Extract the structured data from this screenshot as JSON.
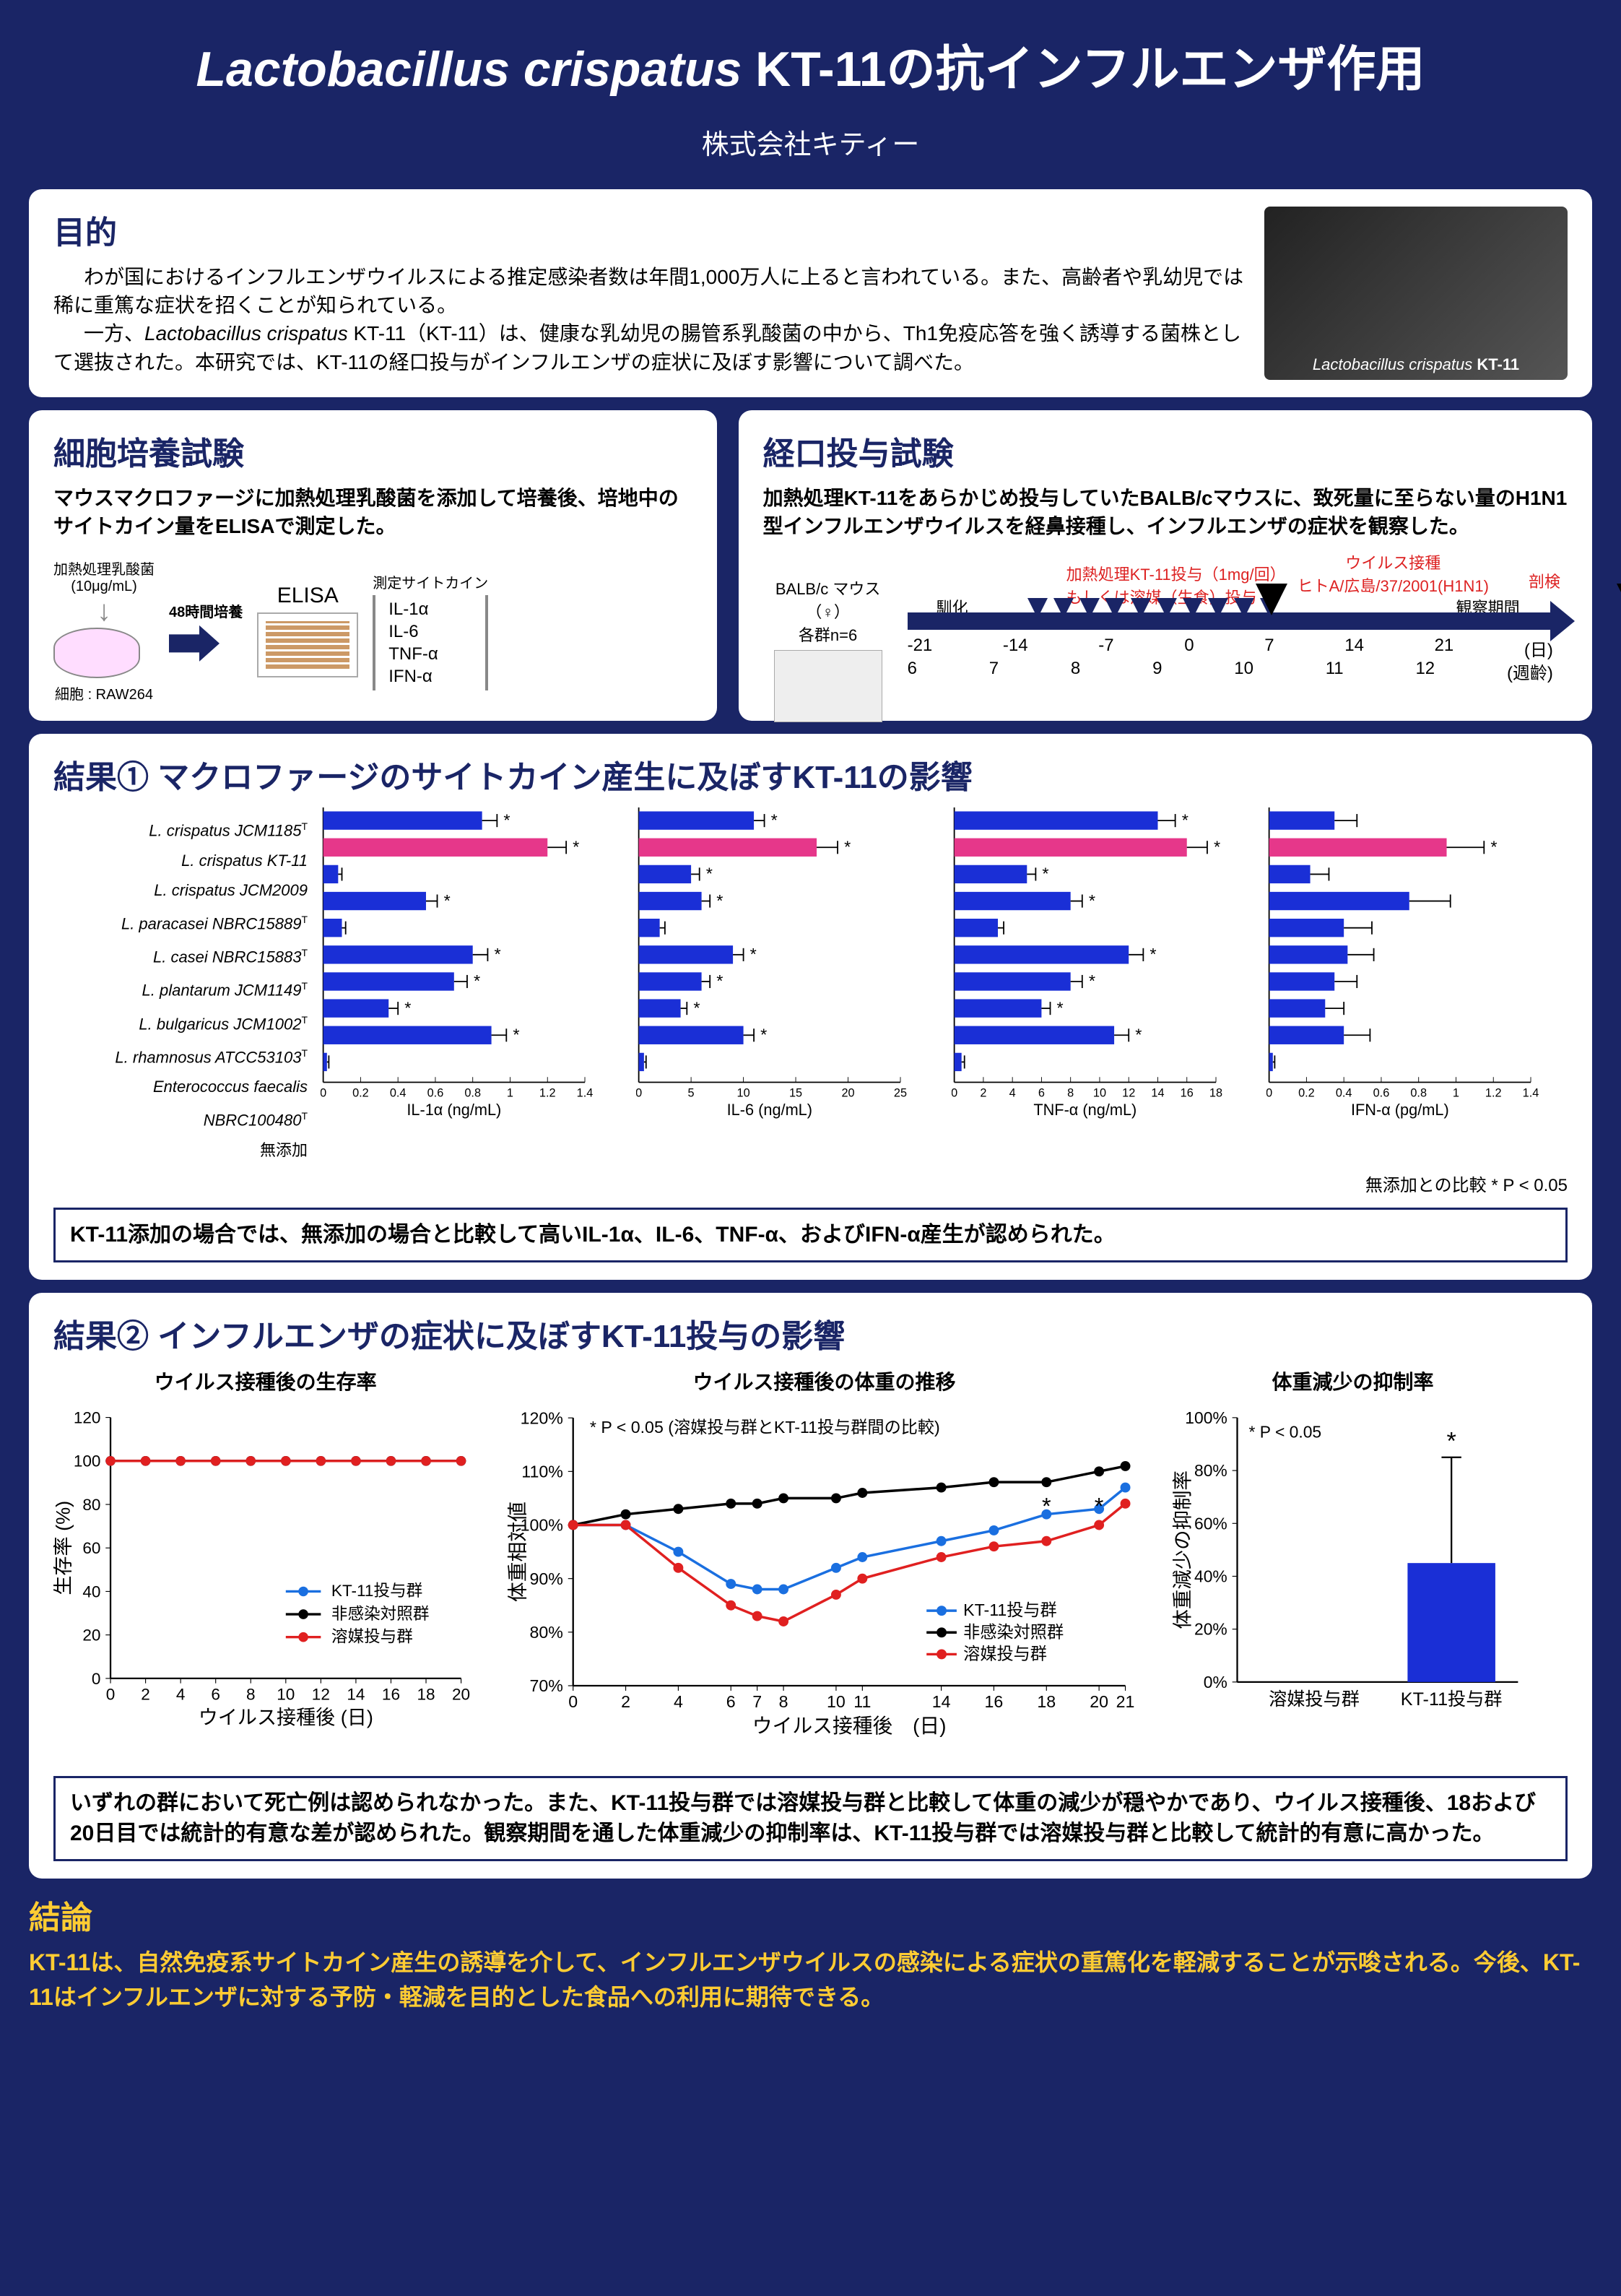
{
  "title": {
    "italic_part": "Lactobacillus crispatus",
    "rest": " KT-11の抗インフルエンザ作用",
    "subtitle": "株式会社キティー"
  },
  "purpose": {
    "heading": "目的",
    "p1": "わが国におけるインフルエンザウイルスによる推定感染者数は年間1,000万人に上ると言われている。また、高齢者や乳幼児では稀に重篤な症状を招くことが知られている。",
    "p2_pre": "一方、",
    "p2_italic": "Lactobacillus crispatus",
    "p2_post": " KT-11（KT-11）は、健康な乳幼児の腸管系乳酸菌の中から、Th1免疫応答を強く誘導する菌株として選抜された。本研究では、KT-11の経口投与がインフルエンザの症状に及ぼす影響について調べた。",
    "img_caption_italic": "Lactobacillus crispatus",
    "img_caption_rest": " KT-11"
  },
  "method1": {
    "heading": "細胞培養試験",
    "desc": "マウスマクロファージに加熱処理乳酸菌を添加して培養後、培地中のサイトカイン量をELISAで測定した。",
    "lab1": "加熱処理乳酸菌",
    "lab1b": "(10μg/mL)",
    "cells": "細胞 : RAW264",
    "incub": "48時間培養",
    "elisa": "ELISA",
    "cyto_head": "測定サイトカイン",
    "cytokines": [
      "IL-1α",
      "IL-6",
      "TNF-α",
      "IFN-α"
    ]
  },
  "method2": {
    "heading": "経口投与試験",
    "desc": "加熱処理KT-11をあらかじめ投与していたBALB/cマウスに、致死量に至らない量のH1N1型インフルエンザウイルスを経鼻接種し、インフルエンザの症状を観察した。",
    "mouse": "BALB/c マウス（♀）",
    "groups": "各群n=6",
    "acclim": "馴化",
    "dosing1": "加熱処理KT-11投与（1mg/回）",
    "dosing2": "もしくは溶媒（生食）投与",
    "virus1": "ウイルス接種",
    "virus2": "ヒトA/広島/37/2001(H1N1)",
    "observe": "観察期間",
    "sac": "剖検",
    "days": [
      "-21",
      "-14",
      "-7",
      "0",
      "7",
      "14",
      "21"
    ],
    "days_unit": "(日)",
    "weeks": [
      "6",
      "7",
      "8",
      "9",
      "10",
      "11",
      "12"
    ],
    "weeks_unit": "(週齡)"
  },
  "result1": {
    "heading": "結果① マクロファージのサイトカイン産生に及ぼすKT-11の影響",
    "species": [
      "L. crispatus JCM1185",
      "L. crispatus KT-11",
      "L. crispatus JCM2009",
      "L. paracasei NBRC15889",
      "L. casei NBRC15883",
      "L. plantarum JCM1149",
      "L. bulgaricus JCM1002",
      "L. rhamnosus ATCC53103",
      "Enterococcus faecalis NBRC100480",
      "無添加"
    ],
    "species_has_sup": [
      true,
      false,
      false,
      true,
      true,
      true,
      true,
      true,
      true,
      false
    ],
    "kt11_index": 1,
    "charts": [
      {
        "label": "IL-1α (ng/mL)",
        "xmax": 1.4,
        "xticks": [
          0,
          0.2,
          0.4,
          0.6,
          0.8,
          1.0,
          1.2,
          1.4
        ],
        "values": [
          0.85,
          1.2,
          0.08,
          0.55,
          0.1,
          0.8,
          0.7,
          0.35,
          0.9,
          0.02
        ],
        "err": [
          0.08,
          0.1,
          0.02,
          0.06,
          0.02,
          0.08,
          0.07,
          0.05,
          0.08,
          0.01
        ],
        "sig": [
          true,
          true,
          false,
          true,
          false,
          true,
          true,
          true,
          true,
          false
        ]
      },
      {
        "label": "IL-6 (ng/mL)",
        "xmax": 25,
        "xticks": [
          0,
          5,
          10,
          15,
          20,
          25
        ],
        "values": [
          11,
          17,
          5,
          6,
          2,
          9,
          6,
          4,
          10,
          0.5
        ],
        "err": [
          1,
          2,
          0.8,
          0.8,
          0.5,
          1,
          0.8,
          0.6,
          1,
          0.2
        ],
        "sig": [
          true,
          true,
          true,
          true,
          false,
          true,
          true,
          true,
          true,
          false
        ]
      },
      {
        "label": "TNF-α (ng/mL)",
        "xmax": 18,
        "xticks": [
          0,
          2,
          4,
          6,
          8,
          10,
          12,
          14,
          16,
          18
        ],
        "values": [
          14,
          16,
          5,
          8,
          3,
          12,
          8,
          6,
          11,
          0.5
        ],
        "err": [
          1.2,
          1.4,
          0.6,
          0.8,
          0.4,
          1,
          0.8,
          0.6,
          1,
          0.2
        ],
        "sig": [
          true,
          true,
          true,
          true,
          false,
          true,
          true,
          true,
          true,
          false
        ]
      },
      {
        "label": "IFN-α (pg/mL)",
        "xmax": 1.4,
        "xticks": [
          0,
          0.2,
          0.4,
          0.6,
          0.8,
          1.0,
          1.2,
          1.4
        ],
        "values": [
          0.35,
          0.95,
          0.22,
          0.75,
          0.4,
          0.42,
          0.35,
          0.3,
          0.4,
          0.02
        ],
        "err": [
          0.12,
          0.2,
          0.1,
          0.22,
          0.15,
          0.14,
          0.12,
          0.1,
          0.14,
          0.01
        ],
        "sig": [
          false,
          true,
          false,
          false,
          false,
          false,
          false,
          false,
          false,
          false
        ]
      }
    ],
    "colors": {
      "bar": "#1a2fd6",
      "kt11_bar": "#e6378a",
      "axis": "#000",
      "bg": "#ffffff",
      "err": "#000"
    },
    "note": "無添加との比較  * P < 0.05",
    "conclusion": "KT-11添加の場合では、無添加の場合と比較して高いIL-1α、IL-6、TNF-α、およびIFN-α産生が認められた。"
  },
  "result2": {
    "heading": "結果② インフルエンザの症状に及ぼすKT-11投与の影響",
    "chart_a": {
      "title": "ウイルス接種後の生存率",
      "ylabel": "生存率 (%)",
      "xlabel": "ウイルス接種後 (日)",
      "xticks": [
        0,
        2,
        4,
        6,
        8,
        10,
        12,
        14,
        16,
        18,
        20
      ],
      "yticks": [
        0,
        20,
        40,
        60,
        80,
        100,
        120
      ],
      "series": [
        {
          "name": "KT-11投与群",
          "color": "#1a6fe0",
          "marker": "circle",
          "y": [
            100,
            100,
            100,
            100,
            100,
            100,
            100,
            100,
            100,
            100,
            100
          ]
        },
        {
          "name": "非感染対照群",
          "color": "#000000",
          "marker": "circle",
          "y": [
            100,
            100,
            100,
            100,
            100,
            100,
            100,
            100,
            100,
            100,
            100
          ]
        },
        {
          "name": "溶媒投与群",
          "color": "#e02020",
          "marker": "circle",
          "y": [
            100,
            100,
            100,
            100,
            100,
            100,
            100,
            100,
            100,
            100,
            100
          ]
        }
      ]
    },
    "chart_b": {
      "title": "ウイルス接種後の体重の推移",
      "ylabel": "体重相対値",
      "xlabel": "ウイルス接種後　(日)",
      "note": "* P < 0.05 (溶媒投与群とKT-11投与群間の比較)",
      "xticks": [
        0,
        2,
        4,
        6,
        7,
        8,
        10,
        11,
        14,
        16,
        18,
        20,
        21
      ],
      "yticks": [
        "70%",
        "80%",
        "90%",
        "100%",
        "110%",
        "120%"
      ],
      "ymin": 70,
      "ymax": 120,
      "series": [
        {
          "name": "KT-11投与群",
          "color": "#1a6fe0",
          "marker": "circle",
          "x": [
            0,
            2,
            4,
            6,
            7,
            8,
            10,
            11,
            14,
            16,
            18,
            20,
            21
          ],
          "y": [
            100,
            100,
            95,
            89,
            88,
            88,
            92,
            94,
            97,
            99,
            102,
            103,
            107
          ]
        },
        {
          "name": "非感染対照群",
          "color": "#000000",
          "marker": "circle",
          "x": [
            0,
            2,
            4,
            6,
            7,
            8,
            10,
            11,
            14,
            16,
            18,
            20,
            21
          ],
          "y": [
            100,
            102,
            103,
            104,
            104,
            105,
            105,
            106,
            107,
            108,
            108,
            110,
            111
          ]
        },
        {
          "name": "溶媒投与群",
          "color": "#e02020",
          "marker": "circle",
          "x": [
            0,
            2,
            4,
            6,
            7,
            8,
            10,
            11,
            14,
            16,
            18,
            20,
            21
          ],
          "y": [
            100,
            100,
            92,
            85,
            83,
            82,
            87,
            90,
            94,
            96,
            97,
            100,
            104
          ]
        }
      ],
      "sig_x": [
        18,
        20
      ]
    },
    "chart_c": {
      "title": "体重減少の抑制率",
      "ylabel": "体重減少の抑制率",
      "note": "* P < 0.05",
      "yticks": [
        "0%",
        "20%",
        "40%",
        "60%",
        "80%",
        "100%"
      ],
      "ymax": 100,
      "bars": [
        {
          "label": "溶媒投与群",
          "value": 0,
          "err": 0,
          "color": "#1a2fd6"
        },
        {
          "label": "KT-11投与群",
          "value": 45,
          "err": 40,
          "color": "#1a2fd6",
          "sig": true
        }
      ]
    },
    "conclusion": "いずれの群において死亡例は認められなかった。また、KT-11投与群では溶媒投与群と比較して体重の減少が穏やかであり、ウイルス接種後、18および20日目では統計的有意な差が認められた。観察期間を通した体重減少の抑制率は、KT-11投与群では溶媒投与群と比較して統計的有意に高かった。"
  },
  "conclusion": {
    "heading": "結論",
    "text": "KT-11は、自然免疫系サイトカイン産生の誘導を介して、インフルエンザウイルスの感染による症状の重篤化を軽減することが示唆される。今後、KT-11はインフルエンザに対する予防・軽減を目的とした食品への利用に期待できる。"
  }
}
